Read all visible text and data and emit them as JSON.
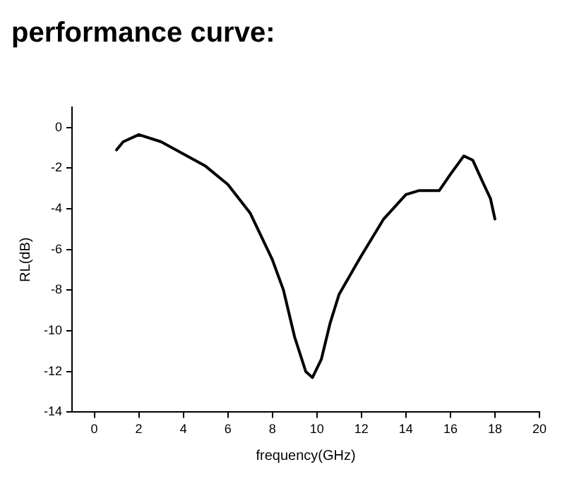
{
  "chart_data": {
    "type": "line",
    "title": "performance curve:",
    "xlabel": "frequency(GHz)",
    "ylabel": "RL(dB)",
    "x": [
      1,
      1.3,
      2,
      3,
      4,
      5,
      6,
      7,
      8,
      8.5,
      9,
      9.5,
      9.8,
      10.2,
      10.6,
      11,
      12,
      13,
      14,
      14.6,
      15.5,
      16,
      16.6,
      17,
      17.5,
      17.8,
      18
    ],
    "values": [
      -1.1,
      -0.7,
      -0.35,
      -0.7,
      -1.3,
      -1.9,
      -2.8,
      -4.2,
      -6.5,
      -8,
      -10.3,
      -12,
      -12.3,
      -11.4,
      -9.6,
      -8.2,
      -6.3,
      -4.5,
      -3.3,
      -3.1,
      -3.1,
      -2.3,
      -1.4,
      -1.6,
      -2.8,
      -3.5,
      -4.5
    ],
    "color": "#000000",
    "xlim": [
      -1,
      20
    ],
    "xticks": [
      0,
      2,
      4,
      6,
      8,
      10,
      12,
      14,
      16,
      18,
      20
    ],
    "ylim": [
      -14,
      1
    ],
    "yticks": [
      -14,
      -12,
      -10,
      -8,
      -6,
      -4,
      -2,
      0
    ],
    "grid": false,
    "legend": false,
    "marker": "none",
    "line_style": "solid"
  }
}
